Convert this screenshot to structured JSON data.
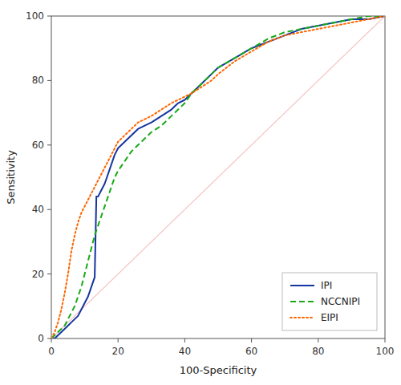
{
  "chart_data": {
    "type": "line",
    "xlabel": "100-Specificity",
    "ylabel": "Sensitivity",
    "xlim": [
      0,
      100
    ],
    "ylim": [
      0,
      100
    ],
    "xticks": [
      0,
      20,
      40,
      60,
      80,
      100
    ],
    "yticks": [
      0,
      20,
      40,
      60,
      80,
      100
    ],
    "grid": false,
    "legend": "lower right",
    "series": [
      {
        "color": "#f5c0c0",
        "line_style": "solid",
        "x": [
          0,
          100
        ],
        "values": [
          0,
          100
        ]
      },
      {
        "name": "IPI",
        "color": "#1535a0",
        "line_style": "solid",
        "x": [
          0,
          1,
          2,
          3,
          4,
          5,
          6,
          7,
          8,
          9,
          10,
          11,
          12,
          13,
          13.5,
          14,
          15,
          16,
          17,
          18,
          19,
          20,
          22,
          24,
          26,
          28,
          30,
          33,
          36,
          38,
          40,
          42,
          45,
          48,
          50,
          55,
          60,
          65,
          70,
          75,
          80,
          85,
          90,
          95,
          100
        ],
        "values": [
          0,
          0,
          1,
          2,
          3,
          4,
          5,
          6,
          7,
          9,
          11,
          13,
          16,
          19,
          44,
          44,
          46,
          48,
          51,
          54,
          57,
          59,
          61,
          63,
          65,
          66,
          67,
          69,
          71,
          73,
          74,
          76,
          79,
          82,
          84,
          87,
          90,
          92,
          94,
          96,
          97,
          98,
          99,
          99,
          100
        ]
      },
      {
        "name": "NCCNIPI",
        "color": "#18aa18",
        "line_style": "dashed",
        "x": [
          0,
          1,
          2,
          3,
          4,
          5,
          6,
          7,
          8,
          9,
          10,
          11,
          12,
          13,
          14,
          15,
          16,
          17,
          18,
          19,
          20,
          22,
          24,
          26,
          28,
          30,
          33,
          36,
          38,
          40,
          42,
          45,
          48,
          50,
          55,
          60,
          65,
          70,
          75,
          80,
          85,
          90,
          95,
          100
        ],
        "values": [
          0,
          1,
          2,
          3,
          4,
          6,
          8,
          10,
          13,
          16,
          20,
          24,
          28,
          32,
          35,
          38,
          41,
          44,
          47,
          50,
          52,
          55,
          58,
          60,
          62,
          64,
          66,
          69,
          71,
          73,
          76,
          79,
          82,
          84,
          87,
          90,
          93,
          95,
          96,
          97,
          98,
          99,
          100,
          100
        ]
      },
      {
        "name": "EIPI",
        "color": "#ff6600",
        "line_style": "dotted",
        "x": [
          0,
          1,
          2,
          3,
          4,
          5,
          6,
          7,
          8,
          9,
          10,
          11,
          12,
          13,
          14,
          15,
          16,
          17,
          18,
          19,
          20,
          22,
          24,
          26,
          28,
          30,
          33,
          36,
          38,
          40,
          42,
          45,
          48,
          50,
          55,
          60,
          65,
          70,
          75,
          80,
          85,
          90,
          95,
          100
        ],
        "values": [
          0,
          2,
          5,
          9,
          14,
          20,
          27,
          32,
          36,
          39,
          41,
          43,
          45,
          47,
          49,
          51,
          53,
          55,
          57,
          59,
          61,
          63,
          65,
          67,
          68,
          69,
          71,
          73,
          74,
          75,
          76,
          78,
          80,
          82,
          86,
          89,
          92,
          94,
          95,
          96,
          97,
          98,
          99,
          100
        ]
      }
    ]
  }
}
